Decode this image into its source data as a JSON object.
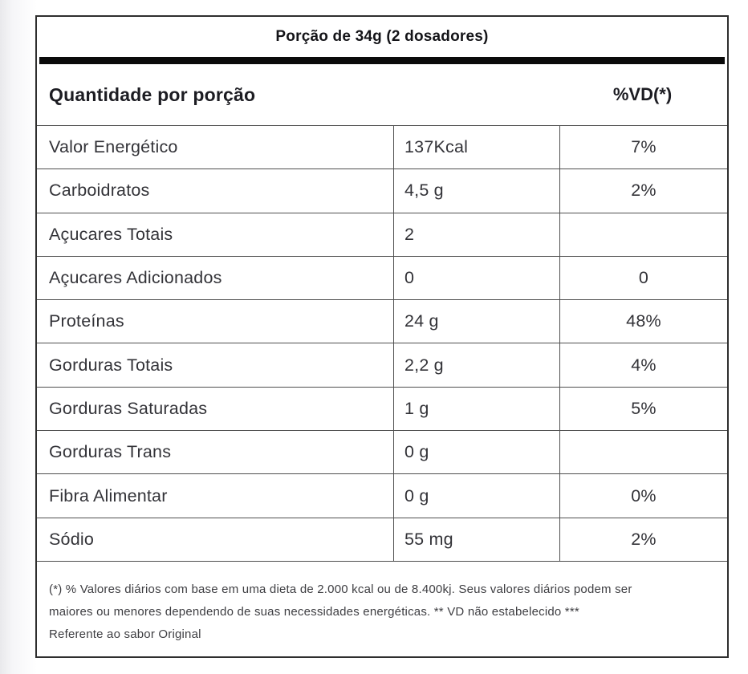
{
  "label": {
    "serving": "Porção de 34g (2 dosadores)",
    "header_left": "Quantidade por porção",
    "header_right": "%VD(*)",
    "rows": [
      {
        "name": "Valor Energético",
        "amount": "137Kcal",
        "vd": "7%"
      },
      {
        "name": "Carboidratos",
        "amount": "4,5 g",
        "vd": "2%"
      },
      {
        "name": "Açucares Totais",
        "amount": "2",
        "vd": ""
      },
      {
        "name": "Açucares Adicionados",
        "amount": "0",
        "vd": "0"
      },
      {
        "name": "Proteínas",
        "amount": "24 g",
        "vd": "48%"
      },
      {
        "name": "Gorduras Totais",
        "amount": "2,2 g",
        "vd": "4%"
      },
      {
        "name": "Gorduras Saturadas",
        "amount": "1 g",
        "vd": "5%"
      },
      {
        "name": "Gorduras Trans",
        "amount": "0 g",
        "vd": ""
      },
      {
        "name": "Fibra Alimentar",
        "amount": "0 g",
        "vd": "0%"
      },
      {
        "name": "Sódio",
        "amount": "55 mg",
        "vd": "2%"
      }
    ],
    "note_lines": [
      "(*) % Valores diários com base em uma dieta de 2.000 kcal ou de 8.400kj. Seus valores diários podem ser",
      "maiores ou menores dependendo de suas necessidades energéticas. ** VD não estabelecido ***",
      "Referente ao sabor Original"
    ]
  },
  "colors": {
    "outer_border": "#2e2e2e",
    "inner_border": "#4f4f4f",
    "divider_bar": "#0a0a0a",
    "heading_text": "#1c1c22",
    "body_text": "#333338",
    "note_text": "#3e3e42",
    "background": "#ffffff"
  }
}
